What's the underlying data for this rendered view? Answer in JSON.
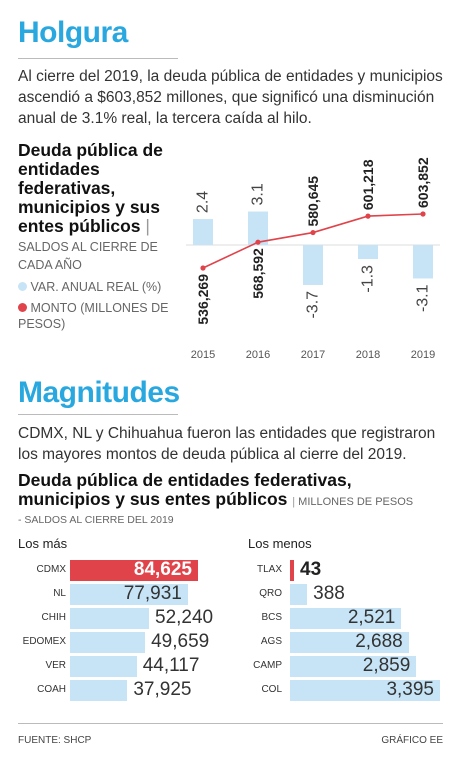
{
  "section1": {
    "title": "Holgura",
    "intro": "Al cierre del 2019, la deuda pública de entidades y municipios ascendió a $603,852 millones, que significó una disminución anual de 3.1% real, la tercera caída al hilo."
  },
  "chart1": {
    "title": "Deuda pública de entidades federativas, municipios y sus entes públicos",
    "subtitle": "SALDOS AL CIERRE DE CADA AÑO",
    "legend": {
      "var_label": "VAR. ANUAL REAL (%)",
      "monto_label": "MONTO (MILLONES DE PESOS)"
    }
  },
  "section2": {
    "title": "Magnitudes",
    "intro": "CDMX, NL y Chihuahua fueron las entidades que registraron los mayores montos de deuda pública al cierre del 2019."
  },
  "chart2": {
    "title": "Deuda pública de entidades federativas, municipios y sus entes públicos",
    "unit": "MILLONES DE PESOS",
    "subtitle": "- SALDOS AL CIERRE DEL 2019",
    "group_most": "Los más",
    "group_least": "Los menos"
  },
  "footer": {
    "source": "FUENTE: SHCP",
    "credit": "GRÁFICO EE"
  },
  "chart_data": [
    {
      "type": "bar",
      "categories": [
        "2015",
        "2016",
        "2017",
        "2018",
        "2019"
      ],
      "series": [
        {
          "name": "VAR. ANUAL REAL (%)",
          "type": "bar",
          "values": [
            2.4,
            3.1,
            -3.7,
            -1.3,
            -3.1
          ],
          "labels": [
            "2.4",
            "3.1",
            "-3.7",
            "-1.3",
            "-3.1"
          ]
        },
        {
          "name": "MONTO (MILLONES DE PESOS)",
          "type": "line",
          "values": [
            536269,
            568592,
            580645,
            601218,
            603852
          ],
          "labels": [
            "536,269",
            "568,592",
            "580,645",
            "601,218",
            "603,852"
          ]
        }
      ],
      "colors": {
        "bar": "#c6e4f6",
        "line": "#e0434a"
      }
    },
    {
      "type": "bar",
      "orientation": "horizontal",
      "group": "Los más",
      "categories": [
        "CDMX",
        "NL",
        "CHIH",
        "EDOMEX",
        "VER",
        "COAH"
      ],
      "values": [
        84625,
        77931,
        52240,
        49659,
        44117,
        37925
      ],
      "labels": [
        "84,625",
        "77,931",
        "52,240",
        "49,659",
        "44,117",
        "37,925"
      ],
      "highlight": "CDMX",
      "colors": {
        "bar": "#c6e4f6",
        "highlight": "#e0434a"
      }
    },
    {
      "type": "bar",
      "orientation": "horizontal",
      "group": "Los menos",
      "categories": [
        "TLAX",
        "QRO",
        "BCS",
        "AGS",
        "CAMP",
        "COL"
      ],
      "values": [
        43,
        388,
        2521,
        2688,
        2859,
        3395
      ],
      "labels": [
        "43",
        "388",
        "2,521",
        "2,688",
        "2,859",
        "3,395"
      ],
      "highlight": "TLAX",
      "colors": {
        "bar": "#c6e4f6",
        "highlight": "#e0434a"
      }
    }
  ]
}
